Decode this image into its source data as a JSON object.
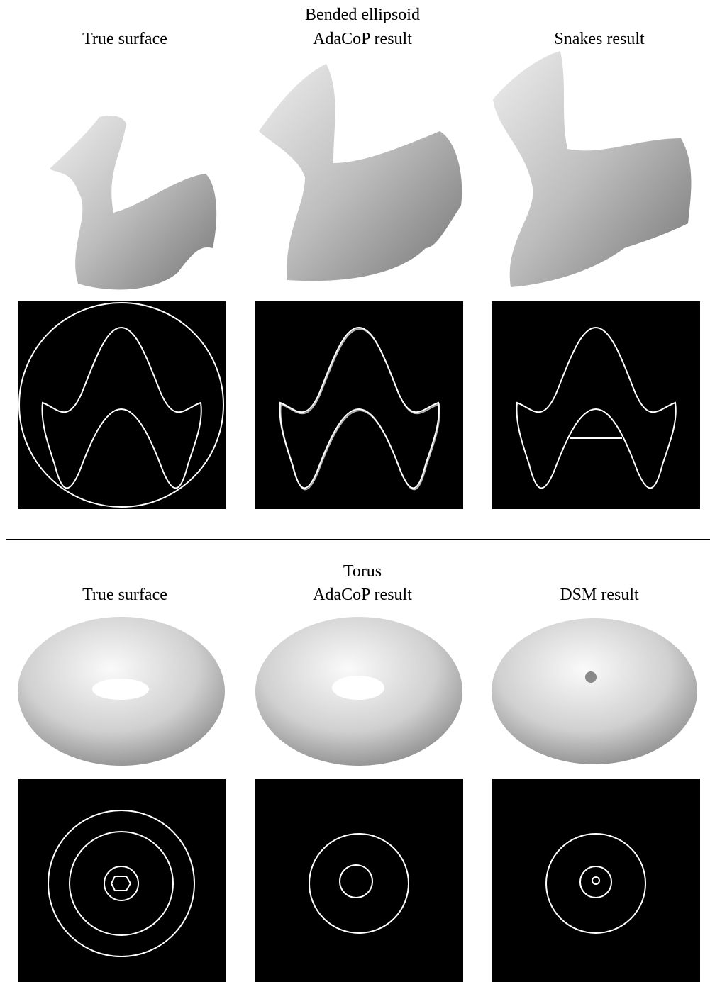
{
  "sections": [
    {
      "title": "Bended ellipsoid",
      "columns": [
        "True surface",
        "AdaCoP result",
        "Snakes result"
      ]
    },
    {
      "title": "Torus",
      "columns": [
        "True surface",
        "AdaCoP result",
        "DSM result"
      ]
    }
  ]
}
